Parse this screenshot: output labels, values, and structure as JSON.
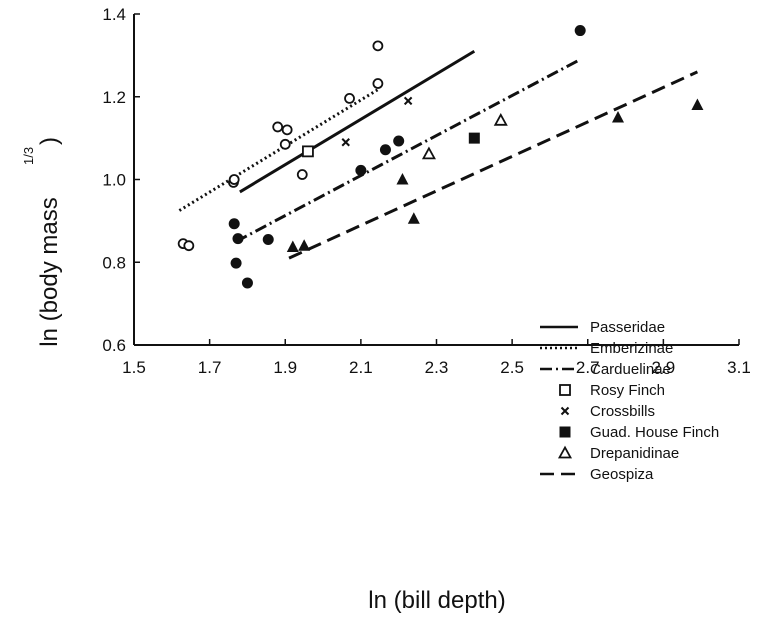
{
  "chart_data": {
    "type": "scatter",
    "xlabel": "ln (bill depth)",
    "ylabel_main": "ln (body mass",
    "ylabel_sup": "1/3",
    "ylabel_close": ")",
    "xlim": [
      1.5,
      3.1
    ],
    "ylim": [
      0.6,
      1.4
    ],
    "xticks": [
      1.5,
      1.7,
      1.9,
      2.1,
      2.3,
      2.5,
      2.7,
      2.9,
      3.1
    ],
    "xtick_labels": [
      "1.5",
      "1.7",
      "1.9",
      "2.1",
      "2.3",
      "2.5",
      "2.7",
      "2.9",
      "3.1"
    ],
    "yticks": [
      0.6,
      0.8,
      1.0,
      1.2,
      1.4
    ],
    "ytick_labels": [
      "0.6",
      "0.8",
      "1.0",
      "1.2",
      "1.4"
    ],
    "grid": false,
    "legend_position": "bottom-right",
    "series": [
      {
        "name": "Emberizinae",
        "marker": "open-circle",
        "points": [
          [
            1.63,
            0.845
          ],
          [
            1.645,
            0.84
          ],
          [
            1.763,
            0.993
          ],
          [
            1.765,
            1.0
          ],
          [
            1.88,
            1.127
          ],
          [
            1.9,
            1.085
          ],
          [
            1.905,
            1.12
          ],
          [
            1.945,
            1.012
          ],
          [
            2.07,
            1.196
          ],
          [
            2.145,
            1.323
          ],
          [
            2.145,
            1.232
          ]
        ]
      },
      {
        "name": "Rosy Finch",
        "marker": "open-square",
        "points": [
          [
            1.96,
            1.068
          ]
        ]
      },
      {
        "name": "Crossbills",
        "marker": "cross",
        "points": [
          [
            2.06,
            1.09
          ],
          [
            2.225,
            1.19
          ]
        ]
      },
      {
        "name": "Carduelinae",
        "marker": "filled-circle",
        "points": [
          [
            1.765,
            0.893
          ],
          [
            1.775,
            0.857
          ],
          [
            1.77,
            0.798
          ],
          [
            1.8,
            0.75
          ],
          [
            1.855,
            0.855
          ],
          [
            2.1,
            1.022
          ],
          [
            2.165,
            1.072
          ],
          [
            2.2,
            1.093
          ],
          [
            2.68,
            1.36
          ]
        ]
      },
      {
        "name": "Guad. House Finch",
        "marker": "filled-square",
        "points": [
          [
            2.4,
            1.1
          ]
        ]
      },
      {
        "name": "Drepanidinae",
        "marker": "open-triangle",
        "points": [
          [
            2.28,
            1.062
          ],
          [
            2.47,
            1.143
          ]
        ]
      },
      {
        "name": "Geospiza",
        "marker": "filled-triangle",
        "points": [
          [
            1.92,
            0.837
          ],
          [
            1.95,
            0.84
          ],
          [
            2.21,
            1.0
          ],
          [
            2.24,
            0.905
          ],
          [
            2.78,
            1.15
          ],
          [
            2.99,
            1.18
          ]
        ]
      }
    ],
    "lines": [
      {
        "name": "Passeridae",
        "style": "solid",
        "x": [
          1.78,
          2.4
        ],
        "y": [
          0.97,
          1.31
        ]
      },
      {
        "name": "Emberizinae",
        "style": "dotted",
        "x": [
          1.62,
          2.15
        ],
        "y": [
          0.925,
          1.22
        ]
      },
      {
        "name": "Carduelinae",
        "style": "dashdot",
        "x": [
          1.77,
          2.68
        ],
        "y": [
          0.85,
          1.29
        ]
      },
      {
        "name": "Geospiza",
        "style": "dashed",
        "x": [
          1.91,
          2.99
        ],
        "y": [
          0.81,
          1.26
        ]
      }
    ],
    "legend": [
      {
        "label": "Passeridae",
        "key": "solid"
      },
      {
        "label": "Emberizinae",
        "key": "dotted"
      },
      {
        "label": "Carduelinae",
        "key": "dashdot"
      },
      {
        "label": "Rosy Finch",
        "key": "open-square"
      },
      {
        "label": "Crossbills",
        "key": "cross"
      },
      {
        "label": "Guad. House Finch",
        "key": "filled-square"
      },
      {
        "label": "Drepanidinae",
        "key": "open-triangle"
      },
      {
        "label": "Geospiza",
        "key": "dashed"
      }
    ]
  }
}
